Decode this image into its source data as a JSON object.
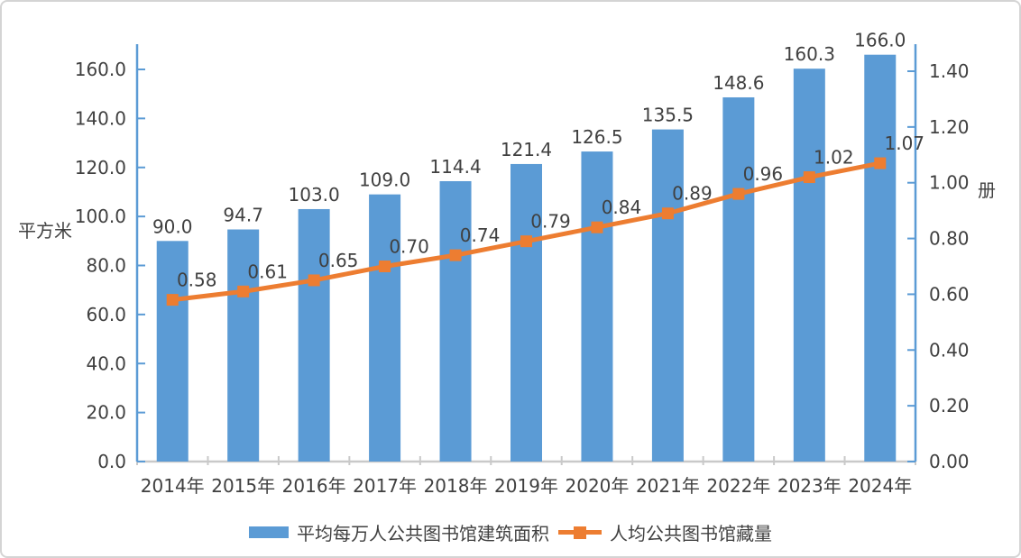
{
  "chart_data": {
    "type": "bar",
    "subtype": "combo-bar-line",
    "categories": [
      "2014年",
      "2015年",
      "2016年",
      "2017年",
      "2018年",
      "2019年",
      "2020年",
      "2021年",
      "2022年",
      "2023年",
      "2024年"
    ],
    "series": [
      {
        "name": "平均每万人公共图书馆建筑面积",
        "type": "bar",
        "axis": "left",
        "color": "#5B9BD5",
        "values": [
          90.0,
          94.7,
          103.0,
          109.0,
          114.4,
          121.4,
          126.5,
          135.5,
          148.6,
          160.3,
          166.0
        ],
        "data_labels": [
          "90.0",
          "94.7",
          "103.0",
          "109.0",
          "114.4",
          "121.4",
          "126.5",
          "135.5",
          "148.6",
          "160.3",
          "166.0"
        ]
      },
      {
        "name": "人均公共图书馆藏量",
        "type": "line",
        "axis": "right",
        "color": "#ED7D31",
        "marker": "square",
        "values": [
          0.58,
          0.61,
          0.65,
          0.7,
          0.74,
          0.79,
          0.84,
          0.89,
          0.96,
          1.02,
          1.07
        ],
        "data_labels": [
          "0.58",
          "0.61",
          "0.65",
          "0.70",
          "0.74",
          "0.79",
          "0.84",
          "0.89",
          "0.96",
          "1.02",
          "1.07"
        ]
      }
    ],
    "left_axis": {
      "title": "平方米",
      "ticks": [
        {
          "label": "0.0",
          "value": 0
        },
        {
          "label": "20.0",
          "value": 20
        },
        {
          "label": "40.0",
          "value": 40
        },
        {
          "label": "60.0",
          "value": 60
        },
        {
          "label": "80.0",
          "value": 80
        },
        {
          "label": "100.0",
          "value": 100
        },
        {
          "label": "120.0",
          "value": 120
        },
        {
          "label": "140.0",
          "value": 140
        },
        {
          "label": "160.0",
          "value": 160
        }
      ],
      "ylim": [
        0,
        170
      ]
    },
    "right_axis": {
      "title": "册",
      "ticks": [
        {
          "label": "0.00",
          "value": 0
        },
        {
          "label": "0.20",
          "value": 0.2
        },
        {
          "label": "0.40",
          "value": 0.4
        },
        {
          "label": "0.60",
          "value": 0.6
        },
        {
          "label": "0.80",
          "value": 0.8
        },
        {
          "label": "1.00",
          "value": 1.0
        },
        {
          "label": "1.20",
          "value": 1.2
        },
        {
          "label": "1.40",
          "value": 1.4
        }
      ],
      "ylim": [
        0,
        1.5
      ]
    },
    "legend_position": "bottom-center",
    "grid": false,
    "colors": {
      "axis_line": "#5B9BD5",
      "category_axis_line": "#C9C9C9",
      "text": "#404040",
      "frame_border": "#D4D4D4",
      "background": "#FFFFFF"
    }
  }
}
